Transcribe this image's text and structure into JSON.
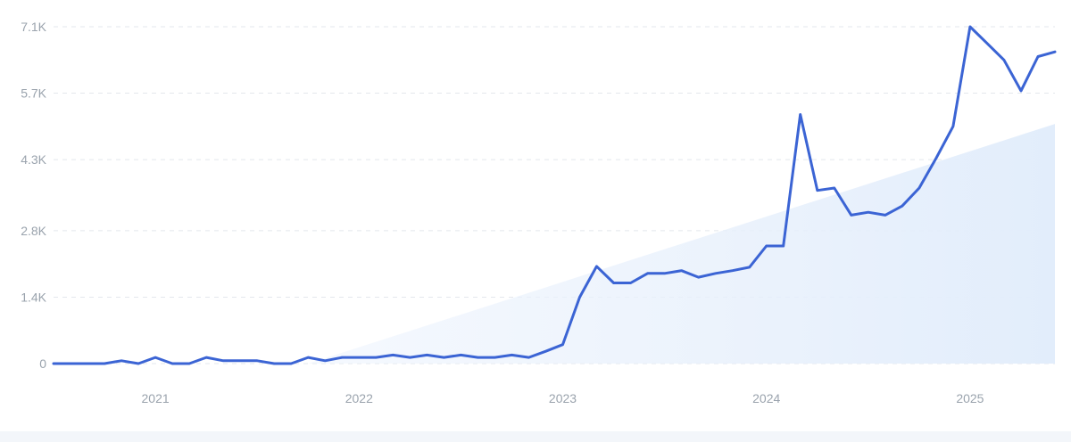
{
  "chart_data": {
    "type": "line",
    "x_ticks": [
      "2021",
      "2022",
      "2023",
      "2024",
      "2025"
    ],
    "y_ticks": [
      "0",
      "1.4K",
      "2.8K",
      "4.3K",
      "5.7K",
      "7.1K"
    ],
    "y_tick_values": [
      0,
      1400,
      2800,
      4300,
      5700,
      7100
    ],
    "ylim": [
      0,
      7100
    ],
    "xlim": [
      "2020-07",
      "2025-06"
    ],
    "grid": true,
    "legend": "none",
    "series": [
      {
        "color": "#3b64d4",
        "x": [
          "2020-07",
          "2020-08",
          "2020-09",
          "2020-10",
          "2020-11",
          "2020-12",
          "2021-01",
          "2021-02",
          "2021-03",
          "2021-04",
          "2021-05",
          "2021-06",
          "2021-07",
          "2021-08",
          "2021-09",
          "2021-10",
          "2021-11",
          "2021-12",
          "2022-01",
          "2022-02",
          "2022-03",
          "2022-04",
          "2022-05",
          "2022-06",
          "2022-07",
          "2022-08",
          "2022-09",
          "2022-10",
          "2022-11",
          "2022-12",
          "2023-01",
          "2023-02",
          "2023-03",
          "2023-04",
          "2023-05",
          "2023-06",
          "2023-07",
          "2023-08",
          "2023-09",
          "2023-10",
          "2023-11",
          "2023-12",
          "2024-01",
          "2024-02",
          "2024-03",
          "2024-04",
          "2024-05",
          "2024-06",
          "2024-07",
          "2024-08",
          "2024-09",
          "2024-10",
          "2024-11",
          "2024-12",
          "2025-01",
          "2025-02",
          "2025-03",
          "2025-04",
          "2025-05",
          "2025-06"
        ],
        "values": [
          0,
          0,
          0,
          0,
          60,
          0,
          130,
          0,
          0,
          130,
          60,
          60,
          60,
          0,
          0,
          130,
          60,
          130,
          130,
          130,
          180,
          130,
          180,
          130,
          180,
          130,
          130,
          180,
          130,
          260,
          400,
          1400,
          2050,
          1700,
          1700,
          1900,
          1900,
          1960,
          1820,
          1900,
          1960,
          2030,
          2480,
          2480,
          5250,
          3650,
          3700,
          3130,
          3190,
          3130,
          3320,
          3700,
          4330,
          5000,
          7100,
          6750,
          6400,
          5750,
          6470,
          6570
        ]
      }
    ],
    "trend_area": {
      "color": "#e4effc",
      "x": [
        "2021-10",
        "2025-06"
      ],
      "values": [
        0,
        5050
      ]
    }
  }
}
